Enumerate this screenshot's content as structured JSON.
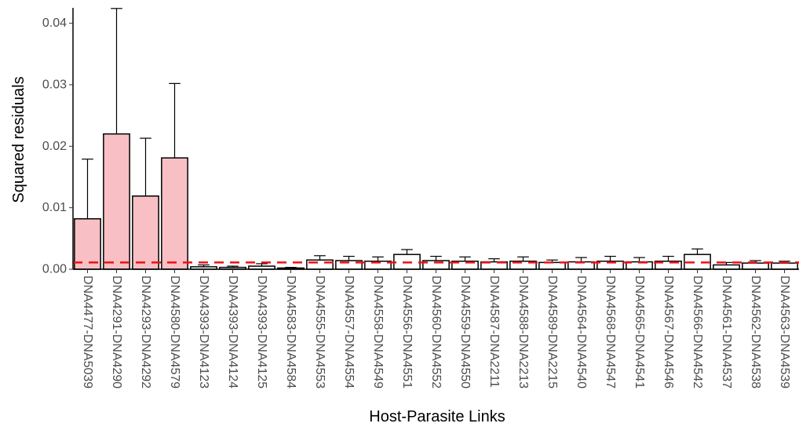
{
  "chart_data": {
    "type": "bar",
    "title": "",
    "xlabel": "Host-Parasite Links",
    "ylabel": "Squared residuals",
    "ylim": [
      0,
      0.0425
    ],
    "yticks": [
      0.0,
      0.01,
      0.02,
      0.03,
      0.04
    ],
    "ytick_labels": [
      "0.00",
      "0.01",
      "0.02",
      "0.03",
      "0.04"
    ],
    "grid": false,
    "legend": "none",
    "categories": [
      "DNA4477-DNA5039",
      "DNA4291-DNA4290",
      "DNA4293-DNA4292",
      "DNA4580-DNA4579",
      "DNA4393-DNA4123",
      "DNA4393-DNA4124",
      "DNA4393-DNA4125",
      "DNA4583-DNA4584",
      "DNA4555-DNA4553",
      "DNA4557-DNA4554",
      "DNA4558-DNA4549",
      "DNA4556-DNA4551",
      "DNA4560-DNA4552",
      "DNA4559-DNA4550",
      "DNA4587-DNA2211",
      "DNA4588-DNA2213",
      "DNA4589-DNA2215",
      "DNA4564-DNA4540",
      "DNA4568-DNA4547",
      "DNA4565-DNA4541",
      "DNA4567-DNA4546",
      "DNA4566-DNA4542",
      "DNA4561-DNA4537",
      "DNA4562-DNA4538",
      "DNA4563-DNA4539"
    ],
    "values": [
      0.0082,
      0.022,
      0.0119,
      0.0181,
      0.0004,
      0.0003,
      0.0005,
      0.0002,
      0.0015,
      0.0014,
      0.0013,
      0.0024,
      0.0014,
      0.0013,
      0.0012,
      0.0013,
      0.0011,
      0.0012,
      0.0013,
      0.0012,
      0.0013,
      0.0024,
      0.0007,
      0.001,
      0.001
    ],
    "error_upper": [
      0.0179,
      0.0424,
      0.0213,
      0.0302,
      0.0007,
      0.0005,
      0.0009,
      0.0003,
      0.0022,
      0.0021,
      0.002,
      0.0032,
      0.0021,
      0.002,
      0.0017,
      0.002,
      0.0015,
      0.0019,
      0.0021,
      0.0019,
      0.0021,
      0.0033,
      0.0011,
      0.0014,
      0.0013
    ],
    "highlight_count": 4,
    "reference_line": 0.0011,
    "colors": {
      "highlight_fill": "#f8c0c4",
      "default_fill": "#ffffff",
      "bar_stroke": "#000000",
      "reference_line": "#ee1111",
      "axis": "#000000"
    }
  }
}
